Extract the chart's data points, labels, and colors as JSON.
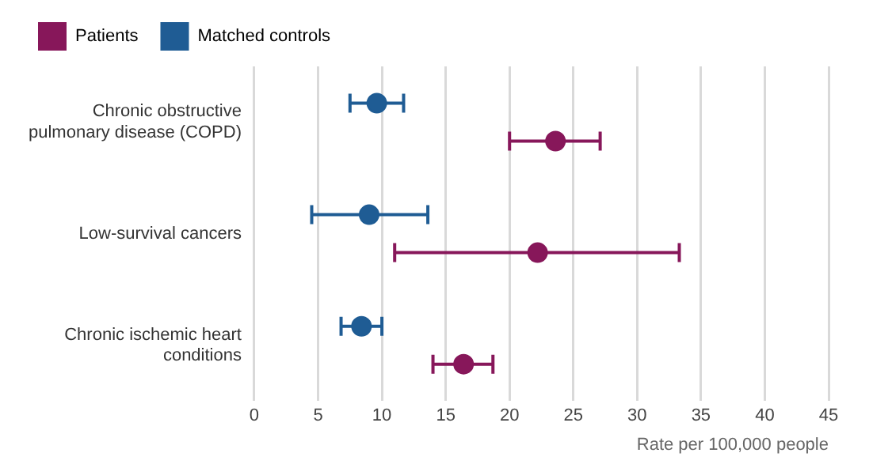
{
  "chart_data": {
    "type": "scatter",
    "orientation": "horizontal",
    "categories": [
      "Chronic obstructive pulmonary disease (COPD)",
      "Low-survival cancers",
      "Chronic ischemic heart conditions"
    ],
    "series": [
      {
        "name": "Patients",
        "color": "#87175a",
        "values": [
          23.6,
          22.2,
          16.4
        ],
        "errors": [
          [
            20,
            27.1
          ],
          [
            11,
            33.3
          ],
          [
            14,
            18.7
          ]
        ]
      },
      {
        "name": "Matched controls",
        "color": "#1f5c94",
        "values": [
          9.6,
          9.0,
          8.4
        ],
        "errors": [
          [
            7.5,
            11.7
          ],
          [
            4.5,
            13.6
          ],
          [
            6.8,
            10
          ]
        ]
      }
    ],
    "xlim": [
      0,
      45
    ],
    "xticks": [
      0,
      5,
      10,
      15,
      20,
      25,
      30,
      35,
      40,
      45
    ],
    "xlabel": "Rate per 100,000 people",
    "grid": "x",
    "legend": "top left",
    "marker": "circle"
  }
}
